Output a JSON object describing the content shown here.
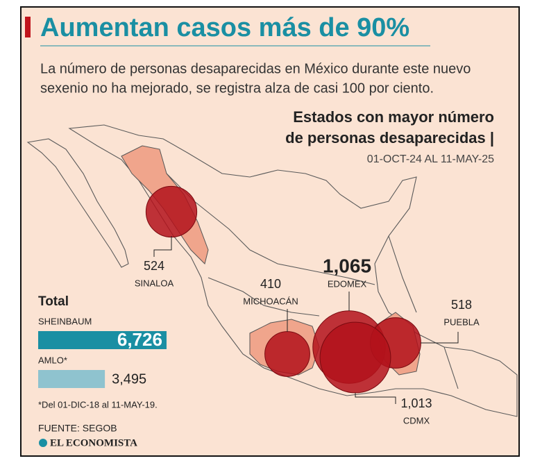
{
  "title": "Aumentan casos más de 90%",
  "subtitle": [
    "La número de personas desaparecidas en México durante este nuevo",
    "sexenio no ha mejorado, se registra alza de casi 100 por ciento."
  ],
  "map": {
    "title": [
      "Estados con mayor número",
      "de personas desaparecidas |"
    ],
    "date_range": "01-OCT-24 AL 11-MAY-25",
    "states": [
      {
        "name": "SINALOA",
        "value": 524
      },
      {
        "name": "MICHOACÁN",
        "value": 410
      },
      {
        "name": "EDOMEX",
        "value": 1065,
        "label": "1,065"
      },
      {
        "name": "PUEBLA",
        "value": 518
      },
      {
        "name": "CDMX",
        "value": 1013,
        "label": "1,013"
      }
    ]
  },
  "totals": {
    "title": "Total",
    "bars": [
      {
        "name": "SHEINBAUM",
        "value": 6726,
        "label": "6,726"
      },
      {
        "name": "AMLO*",
        "value": 3495,
        "label": "3,495"
      }
    ],
    "note": "*Del 01-DIC-18 al 11-MAY-19."
  },
  "source": "FUENTE: SEGOB",
  "brand": "EL ECONOMISTA"
}
